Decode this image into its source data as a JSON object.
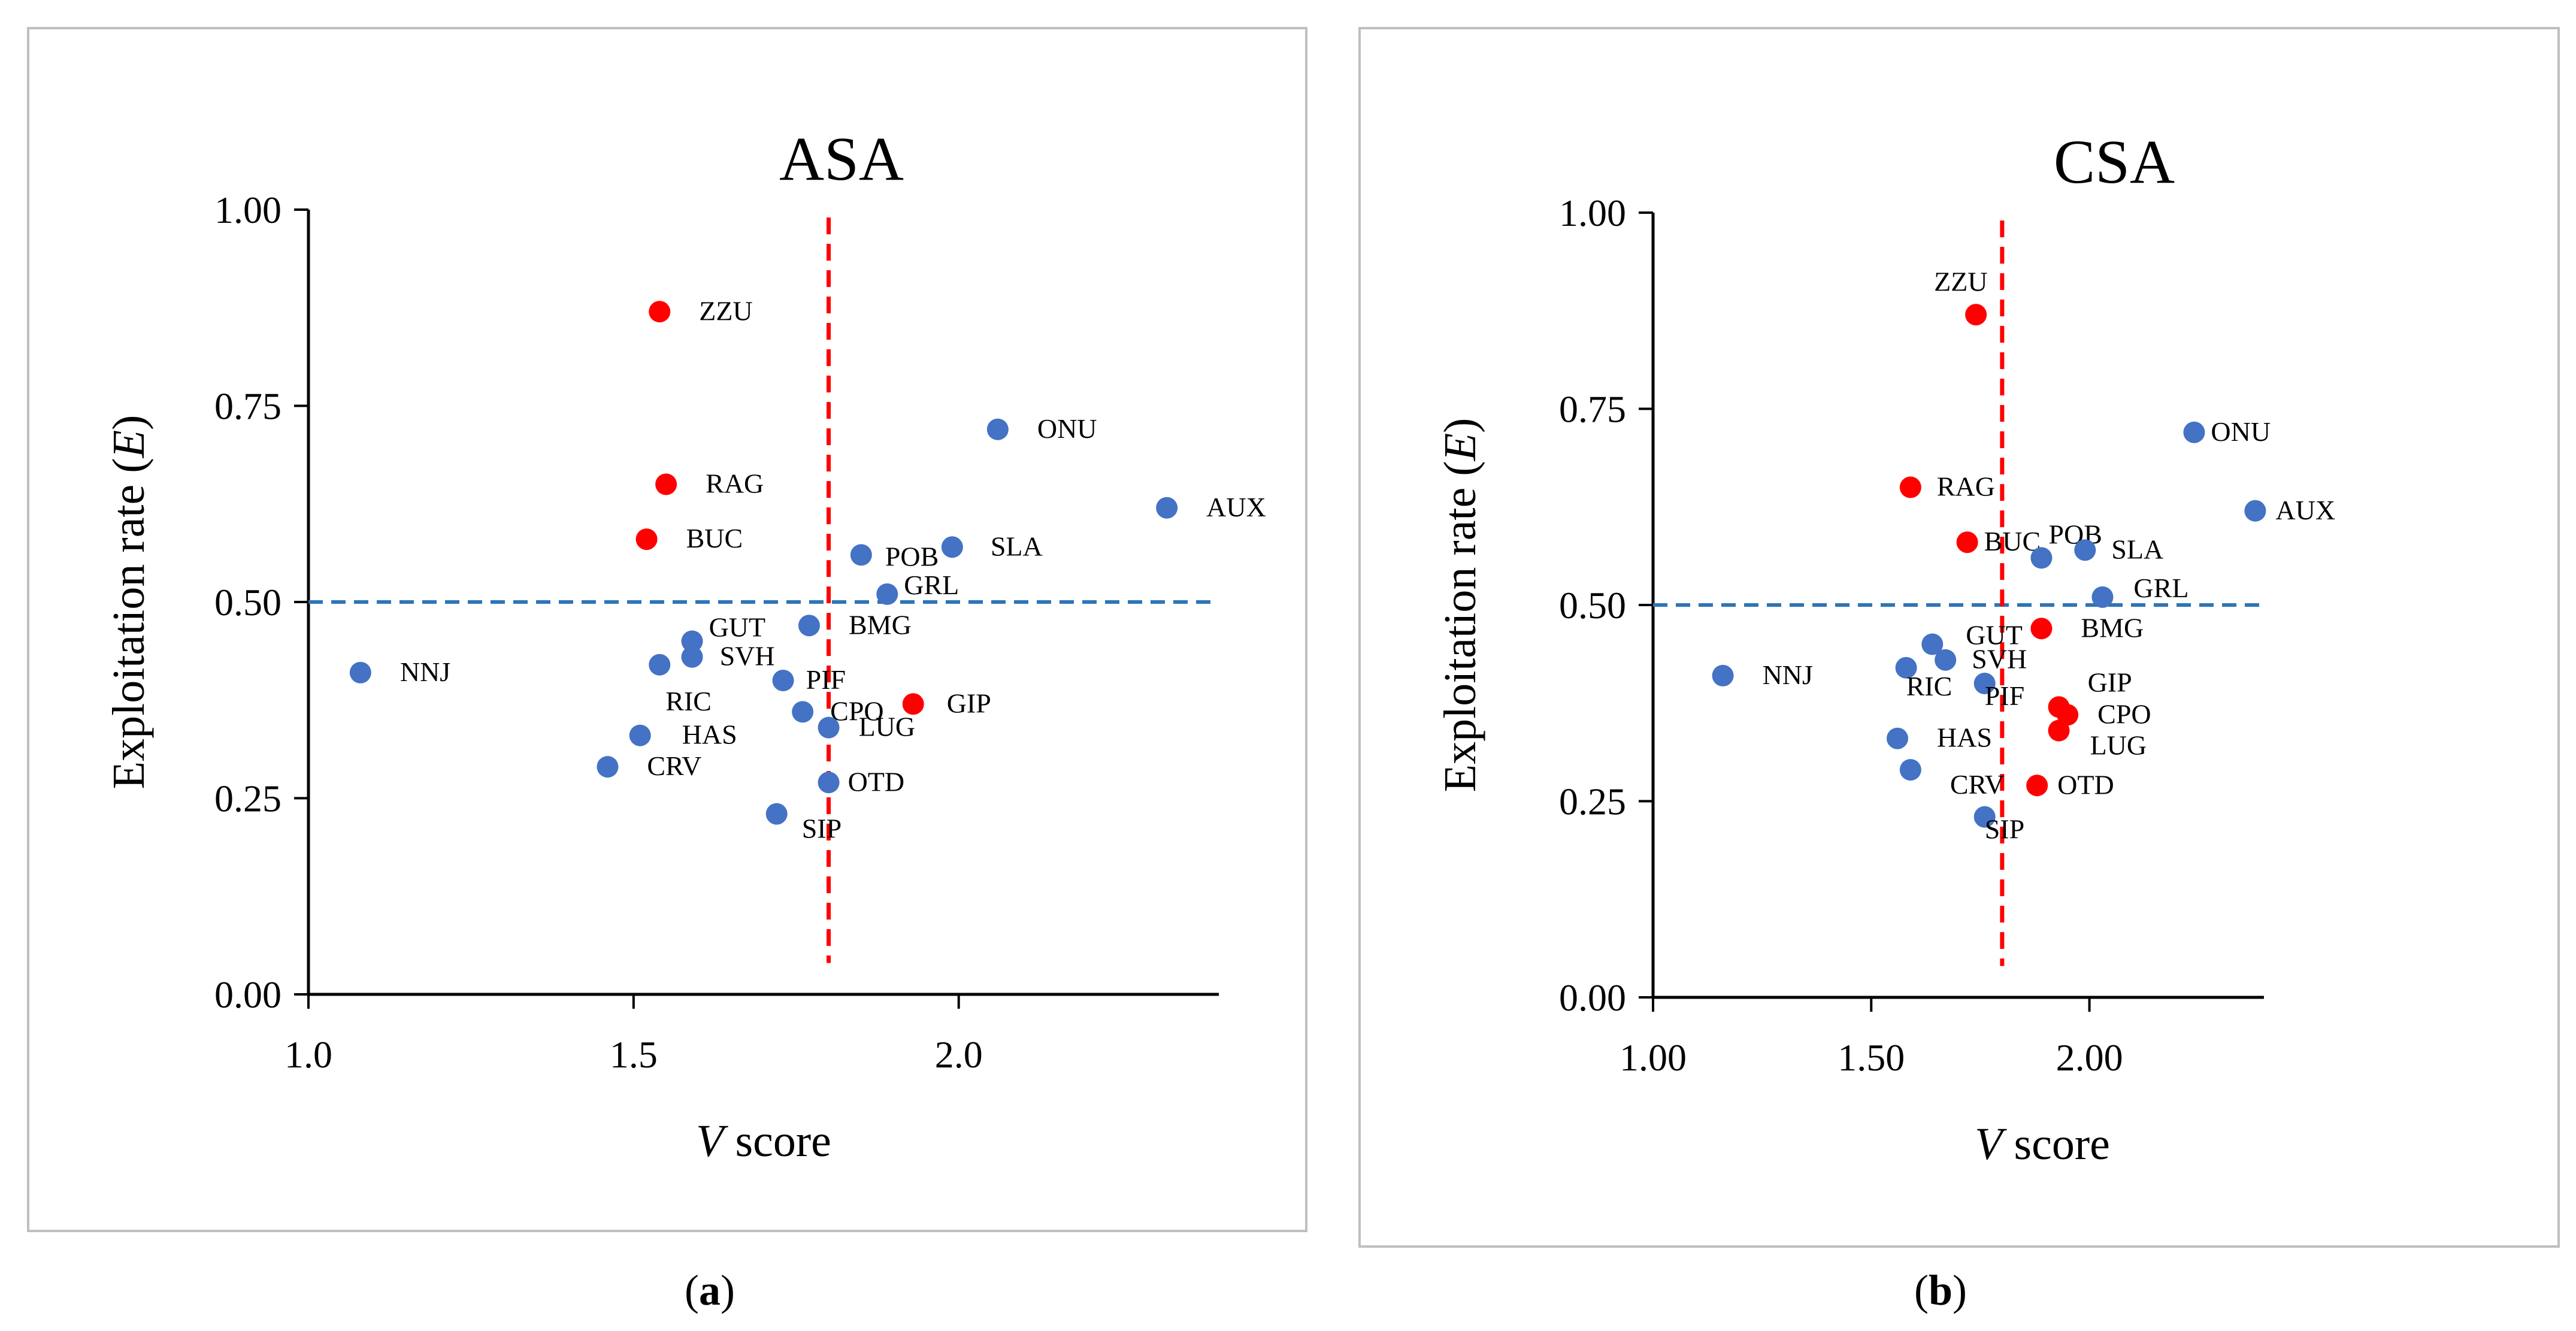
{
  "chart_data": [
    {
      "type": "scatter",
      "panel_label": "a",
      "title": "ASA",
      "xlabel": {
        "italic": "V",
        "rest": " score"
      },
      "ylabel": {
        "pre": "Exploitation rate (",
        "italic": "E",
        "post": ")"
      },
      "xlim": [
        1.0,
        2.4
      ],
      "ylim": [
        0.0,
        1.0
      ],
      "xticks": [
        "1.0",
        "1.5",
        "2.0"
      ],
      "xtick_values": [
        1.0,
        1.5,
        2.0
      ],
      "yticks": [
        "0.00",
        "0.25",
        "0.50",
        "0.75",
        "1.00"
      ],
      "ytick_values": [
        0.0,
        0.25,
        0.5,
        0.75,
        1.0
      ],
      "threshold_x": 1.8,
      "threshold_y": 0.5,
      "colors": {
        "blue": "#4472c4",
        "red": "#ff0000",
        "vline": "#ff0000",
        "hline": "#2e75b6"
      },
      "points": [
        {
          "label": "ZZU",
          "x": 1.54,
          "y": 0.87,
          "color": "red"
        },
        {
          "label": "RAG",
          "x": 1.55,
          "y": 0.65,
          "color": "red"
        },
        {
          "label": "BUC",
          "x": 1.52,
          "y": 0.58,
          "color": "red"
        },
        {
          "label": "ONU",
          "x": 2.06,
          "y": 0.72,
          "color": "blue"
        },
        {
          "label": "AUX",
          "x": 2.32,
          "y": 0.62,
          "color": "blue"
        },
        {
          "label": "POB",
          "x": 1.85,
          "y": 0.56,
          "color": "blue"
        },
        {
          "label": "SLA",
          "x": 1.99,
          "y": 0.57,
          "color": "blue"
        },
        {
          "label": "GRL",
          "x": 1.89,
          "y": 0.51,
          "color": "blue"
        },
        {
          "label": "BMG",
          "x": 1.77,
          "y": 0.47,
          "color": "blue"
        },
        {
          "label": "GUT",
          "x": 1.59,
          "y": 0.45,
          "color": "blue"
        },
        {
          "label": "SVH",
          "x": 1.59,
          "y": 0.43,
          "color": "blue"
        },
        {
          "label": "RIC",
          "x": 1.54,
          "y": 0.42,
          "color": "blue"
        },
        {
          "label": "NNJ",
          "x": 1.08,
          "y": 0.41,
          "color": "blue"
        },
        {
          "label": "PIF",
          "x": 1.73,
          "y": 0.4,
          "color": "blue"
        },
        {
          "label": "GIP",
          "x": 1.93,
          "y": 0.37,
          "color": "red"
        },
        {
          "label": "CPO",
          "x": 1.76,
          "y": 0.36,
          "color": "blue"
        },
        {
          "label": "LUG",
          "x": 1.8,
          "y": 0.34,
          "color": "blue"
        },
        {
          "label": "HAS",
          "x": 1.51,
          "y": 0.33,
          "color": "blue"
        },
        {
          "label": "CRV",
          "x": 1.46,
          "y": 0.29,
          "color": "blue"
        },
        {
          "label": "OTD",
          "x": 1.8,
          "y": 0.27,
          "color": "blue"
        },
        {
          "label": "SIP",
          "x": 1.72,
          "y": 0.23,
          "color": "blue"
        }
      ]
    },
    {
      "type": "scatter",
      "panel_label": "b",
      "title": "CSA",
      "xlabel": {
        "italic": "V",
        "rest": " score"
      },
      "ylabel": {
        "pre": "Exploitation rate (",
        "italic": "E",
        "post": ")"
      },
      "xlim": [
        1.0,
        2.4
      ],
      "ylim": [
        0.0,
        1.0
      ],
      "xticks": [
        "1.00",
        "1.50",
        "2.00"
      ],
      "xtick_values": [
        1.0,
        1.5,
        2.0
      ],
      "yticks": [
        "0.00",
        "0.25",
        "0.50",
        "0.75",
        "1.00"
      ],
      "ytick_values": [
        0.0,
        0.25,
        0.5,
        0.75,
        1.0
      ],
      "threshold_x": 1.8,
      "threshold_y": 0.5,
      "colors": {
        "blue": "#4472c4",
        "red": "#ff0000",
        "vline": "#ff0000",
        "hline": "#2e75b6"
      },
      "points": [
        {
          "label": "ZZU",
          "x": 1.74,
          "y": 0.87,
          "color": "red"
        },
        {
          "label": "RAG",
          "x": 1.59,
          "y": 0.65,
          "color": "red"
        },
        {
          "label": "BUC",
          "x": 1.72,
          "y": 0.58,
          "color": "red"
        },
        {
          "label": "ONU",
          "x": 2.24,
          "y": 0.72,
          "color": "blue"
        },
        {
          "label": "AUX",
          "x": 2.38,
          "y": 0.62,
          "color": "blue"
        },
        {
          "label": "POB",
          "x": 1.89,
          "y": 0.56,
          "color": "blue"
        },
        {
          "label": "SLA",
          "x": 1.99,
          "y": 0.57,
          "color": "blue"
        },
        {
          "label": "GRL",
          "x": 2.03,
          "y": 0.51,
          "color": "blue"
        },
        {
          "label": "BMG",
          "x": 1.89,
          "y": 0.47,
          "color": "red"
        },
        {
          "label": "GUT",
          "x": 1.64,
          "y": 0.45,
          "color": "blue"
        },
        {
          "label": "SVH",
          "x": 1.67,
          "y": 0.43,
          "color": "blue"
        },
        {
          "label": "RIC",
          "x": 1.58,
          "y": 0.42,
          "color": "blue"
        },
        {
          "label": "NNJ",
          "x": 1.16,
          "y": 0.41,
          "color": "blue"
        },
        {
          "label": "PIF",
          "x": 1.76,
          "y": 0.4,
          "color": "blue"
        },
        {
          "label": "GIP",
          "x": 1.93,
          "y": 0.37,
          "color": "red"
        },
        {
          "label": "CPO",
          "x": 1.95,
          "y": 0.36,
          "color": "red"
        },
        {
          "label": "LUG",
          "x": 1.93,
          "y": 0.34,
          "color": "red"
        },
        {
          "label": "HAS",
          "x": 1.56,
          "y": 0.33,
          "color": "blue"
        },
        {
          "label": "CRV",
          "x": 1.59,
          "y": 0.29,
          "color": "blue"
        },
        {
          "label": "OTD",
          "x": 1.88,
          "y": 0.27,
          "color": "red"
        },
        {
          "label": "SIP",
          "x": 1.76,
          "y": 0.23,
          "color": "blue"
        }
      ]
    }
  ]
}
